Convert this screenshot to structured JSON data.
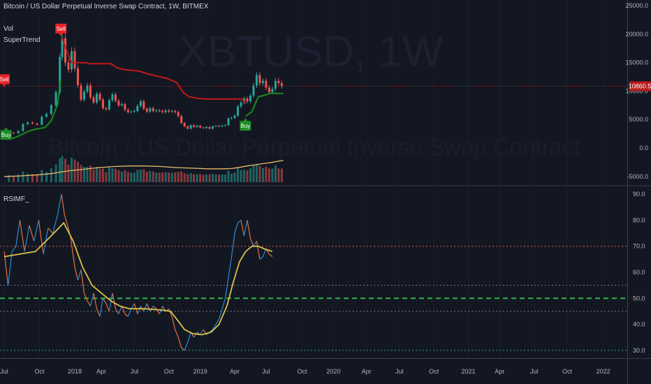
{
  "header": {
    "symbol_title": "Bitcoin / US Dollar Perpetual Inverse Swap Contract, 1W, BITMEX",
    "indicators": [
      "Vol",
      "SuperTrend"
    ]
  },
  "watermark": {
    "ticker": "XBTUSD, 1W",
    "description": "Bitcoin / US Dollar Perpetual Inverse Swap Contract"
  },
  "price_tag": {
    "label": "10860.5",
    "value": 10860.5,
    "color": "#b71c1c"
  },
  "signals": [
    {
      "label": "Sell",
      "type": "sell",
      "t": 0.0,
      "price": 10500
    },
    {
      "label": "Buy",
      "type": "buy",
      "t": 0.12,
      "price": 3900
    },
    {
      "label": "Sell",
      "type": "sell",
      "t": 3.62,
      "price": 19400
    },
    {
      "label": "Buy",
      "type": "buy",
      "t": 15.38,
      "price": 5500
    }
  ],
  "colors": {
    "up": "#26a69a",
    "down": "#ef5350",
    "supertrend_up": "#1b8a1b",
    "supertrend_down": "#c21818",
    "rsi": "#2a8bd1",
    "rsi_alt": "#e8703a",
    "signal": "#d8c24a",
    "volume_ma": "#e8b96c"
  },
  "chart_data": [
    {
      "type": "candlestick",
      "title": "Bitcoin / US Dollar Perpetual Inverse Swap Contract, 1W, BITMEX",
      "yticks": [
        "25000.0",
        "20000.0",
        "15000.0",
        "10000.0",
        "5000.0",
        "0.0",
        "-5000.0"
      ],
      "ytick_values": [
        25000,
        20000,
        15000,
        10000,
        5000,
        0,
        -5000
      ],
      "ylim": [
        -6500,
        26000
      ],
      "xlim": [
        0,
        40
      ],
      "xticks": [
        "Jul",
        "Oct",
        "2018",
        "Apr",
        "Jul",
        "Oct",
        "2019",
        "Apr",
        "Jul",
        "Oct",
        "2020",
        "Apr",
        "Jul",
        "Oct",
        "2021",
        "Apr",
        "Jul",
        "Oct",
        "2022"
      ],
      "xtick_positions": [
        0,
        2.25,
        4.5,
        6.2,
        8.3,
        10.5,
        12.5,
        14.7,
        16.7,
        19.0,
        21.0,
        23.1,
        25.2,
        27.4,
        29.6,
        31.6,
        33.8,
        35.9,
        38.2
      ],
      "close_path": [
        [
          0,
          2500
        ],
        [
          0.3,
          2700
        ],
        [
          0.6,
          2600
        ],
        [
          0.9,
          3000
        ],
        [
          1.2,
          4200
        ],
        [
          1.5,
          4500
        ],
        [
          1.8,
          4300
        ],
        [
          2.1,
          4100
        ],
        [
          2.4,
          5500
        ],
        [
          2.7,
          6000
        ],
        [
          3.0,
          7500
        ],
        [
          3.3,
          9800
        ],
        [
          3.55,
          16000
        ],
        [
          3.7,
          19300
        ],
        [
          3.9,
          15000
        ],
        [
          4.1,
          13800
        ],
        [
          4.3,
          17000
        ],
        [
          4.5,
          14000
        ],
        [
          4.7,
          11000
        ],
        [
          4.9,
          8500
        ],
        [
          5.1,
          9900
        ],
        [
          5.3,
          11000
        ],
        [
          5.5,
          8900
        ],
        [
          5.7,
          8000
        ],
        [
          5.9,
          9500
        ],
        [
          6.1,
          8500
        ],
        [
          6.3,
          7000
        ],
        [
          6.5,
          6800
        ],
        [
          6.7,
          8400
        ],
        [
          6.9,
          9400
        ],
        [
          7.1,
          8300
        ],
        [
          7.3,
          7500
        ],
        [
          7.5,
          7700
        ],
        [
          7.7,
          6700
        ],
        [
          7.9,
          6300
        ],
        [
          8.1,
          6400
        ],
        [
          8.3,
          6500
        ],
        [
          8.5,
          7400
        ],
        [
          8.7,
          8200
        ],
        [
          8.9,
          6900
        ],
        [
          9.1,
          6400
        ],
        [
          9.3,
          7000
        ],
        [
          9.5,
          6500
        ],
        [
          9.7,
          6600
        ],
        [
          9.9,
          6500
        ],
        [
          10.1,
          6300
        ],
        [
          10.3,
          6600
        ],
        [
          10.5,
          6400
        ],
        [
          10.7,
          6500
        ],
        [
          10.9,
          6300
        ],
        [
          11.1,
          5600
        ],
        [
          11.3,
          4400
        ],
        [
          11.5,
          3800
        ],
        [
          11.7,
          3400
        ],
        [
          11.9,
          4000
        ],
        [
          12.1,
          3700
        ],
        [
          12.3,
          3900
        ],
        [
          12.5,
          3600
        ],
        [
          12.7,
          3500
        ],
        [
          12.9,
          3700
        ],
        [
          13.1,
          3400
        ],
        [
          13.3,
          3800
        ],
        [
          13.5,
          3900
        ],
        [
          13.7,
          3800
        ],
        [
          13.9,
          3950
        ],
        [
          14.1,
          4000
        ],
        [
          14.3,
          5200
        ],
        [
          14.5,
          5300
        ],
        [
          14.7,
          5700
        ],
        [
          14.9,
          7300
        ],
        [
          15.1,
          8000
        ],
        [
          15.3,
          8700
        ],
        [
          15.5,
          8200
        ],
        [
          15.7,
          9200
        ],
        [
          15.9,
          11000
        ],
        [
          16.1,
          12800
        ],
        [
          16.3,
          11400
        ],
        [
          16.5,
          11800
        ],
        [
          16.7,
          10600
        ],
        [
          16.9,
          9800
        ],
        [
          17.1,
          10400
        ],
        [
          17.3,
          11800
        ],
        [
          17.5,
          11400
        ],
        [
          17.7,
          10860
        ]
      ],
      "supertrend": [
        {
          "trend": "up",
          "points": [
            [
              0.1,
              1700
            ],
            [
              0.6,
              1750
            ],
            [
              1.0,
              2200
            ],
            [
              1.6,
              3000
            ],
            [
              2.0,
              3300
            ],
            [
              2.6,
              3600
            ],
            [
              3.0,
              4800
            ],
            [
              3.4,
              7600
            ],
            [
              3.6,
              12000
            ]
          ]
        },
        {
          "trend": "down",
          "points": [
            [
              3.7,
              19300
            ],
            [
              4.0,
              17000
            ],
            [
              4.3,
              15000
            ],
            [
              5.2,
              15000
            ],
            [
              5.5,
              14800
            ],
            [
              6.8,
              14800
            ],
            [
              7.2,
              14100
            ],
            [
              7.6,
              13800
            ],
            [
              8.6,
              13500
            ],
            [
              9.2,
              13000
            ],
            [
              10.4,
              12200
            ],
            [
              11.0,
              11500
            ],
            [
              11.4,
              9800
            ],
            [
              11.8,
              9000
            ],
            [
              12.4,
              8700
            ],
            [
              13.0,
              8600
            ],
            [
              15.2,
              8600
            ],
            [
              15.4,
              7800
            ]
          ]
        },
        {
          "trend": "up",
          "points": [
            [
              15.4,
              5600
            ],
            [
              15.8,
              6400
            ],
            [
              16.2,
              9000
            ],
            [
              16.5,
              9200
            ],
            [
              17.0,
              9600
            ],
            [
              17.5,
              9600
            ],
            [
              17.8,
              9600
            ]
          ]
        }
      ],
      "volume_ma": [
        [
          0,
          -5000
        ],
        [
          1,
          -4900
        ],
        [
          2,
          -4750
        ],
        [
          3,
          -4500
        ],
        [
          4,
          -4050
        ],
        [
          5,
          -3750
        ],
        [
          6,
          -3450
        ],
        [
          7,
          -3250
        ],
        [
          8,
          -3150
        ],
        [
          9,
          -3150
        ],
        [
          10,
          -3250
        ],
        [
          11,
          -3450
        ],
        [
          12,
          -3550
        ],
        [
          13,
          -3650
        ],
        [
          14,
          -3650
        ],
        [
          14.5,
          -3600
        ],
        [
          15,
          -3400
        ],
        [
          15.5,
          -3150
        ],
        [
          16,
          -2950
        ],
        [
          16.5,
          -2750
        ],
        [
          17,
          -2550
        ],
        [
          17.5,
          -2300
        ],
        [
          17.8,
          -2200
        ]
      ],
      "volume_base": -6000
    },
    {
      "type": "line",
      "title": "RSIMF_",
      "yticks": [
        "90.0",
        "80.0",
        "70.0",
        "60.0",
        "50.0",
        "40.0",
        "30.0"
      ],
      "ytick_values": [
        90,
        80,
        70,
        60,
        50,
        40,
        30
      ],
      "ylim": [
        27,
        93
      ],
      "xlim": [
        0,
        40
      ],
      "hlines": [
        {
          "y": 70,
          "color": "#ef5350",
          "style": "dotted"
        },
        {
          "y": 55,
          "color": "#787b86",
          "style": "dotted"
        },
        {
          "y": 50,
          "color": "#2fb54a",
          "style": "dashed"
        },
        {
          "y": 45,
          "color": "#787b86",
          "style": "dotted"
        },
        {
          "y": 30,
          "color": "#26a69a",
          "style": "dotted"
        }
      ],
      "series": [
        {
          "points": [
            [
              0,
              68
            ],
            [
              0.25,
              55
            ],
            [
              0.5,
              68
            ],
            [
              0.75,
              70
            ],
            [
              1.0,
              80
            ],
            [
              1.3,
              68
            ],
            [
              1.6,
              78
            ],
            [
              1.9,
              72
            ],
            [
              2.2,
              80
            ],
            [
              2.5,
              67
            ],
            [
              2.8,
              77
            ],
            [
              3.1,
              75
            ],
            [
              3.4,
              82
            ],
            [
              3.65,
              90
            ],
            [
              3.85,
              82
            ],
            [
              4.05,
              78
            ],
            [
              4.25,
              73
            ],
            [
              4.5,
              62
            ],
            [
              4.7,
              57
            ],
            [
              4.9,
              61
            ],
            [
              5.1,
              52
            ],
            [
              5.3,
              49
            ],
            [
              5.5,
              47
            ],
            [
              5.7,
              52
            ],
            [
              5.9,
              46
            ],
            [
              6.1,
              43
            ],
            [
              6.3,
              50
            ],
            [
              6.5,
              48
            ],
            [
              6.7,
              45
            ],
            [
              6.9,
              52
            ],
            [
              7.1,
              46
            ],
            [
              7.3,
              44
            ],
            [
              7.5,
              47
            ],
            [
              7.7,
              44
            ],
            [
              7.9,
              43
            ],
            [
              8.1,
              46
            ],
            [
              8.3,
              48
            ],
            [
              8.5,
              44
            ],
            [
              8.7,
              47
            ],
            [
              8.9,
              45
            ],
            [
              9.1,
              48
            ],
            [
              9.3,
              45
            ],
            [
              9.5,
              47
            ],
            [
              9.7,
              46
            ],
            [
              9.9,
              44
            ],
            [
              10.1,
              47
            ],
            [
              10.3,
              45
            ],
            [
              10.5,
              46
            ],
            [
              10.7,
              43
            ],
            [
              10.9,
              38
            ],
            [
              11.1,
              35
            ],
            [
              11.3,
              31
            ],
            [
              11.5,
              30
            ],
            [
              11.7,
              33
            ],
            [
              11.9,
              37
            ],
            [
              12.1,
              35
            ],
            [
              12.3,
              37
            ],
            [
              12.5,
              36
            ],
            [
              12.7,
              38
            ],
            [
              12.9,
              36
            ],
            [
              13.1,
              37
            ],
            [
              13.3,
              38
            ],
            [
              13.5,
              40
            ],
            [
              13.7,
              42
            ],
            [
              13.9,
              46
            ],
            [
              14.1,
              50
            ],
            [
              14.3,
              58
            ],
            [
              14.5,
              66
            ],
            [
              14.7,
              75
            ],
            [
              14.9,
              79
            ],
            [
              15.1,
              80
            ],
            [
              15.3,
              74
            ],
            [
              15.5,
              80
            ],
            [
              15.7,
              73
            ],
            [
              15.9,
              70
            ],
            [
              16.1,
              72
            ],
            [
              16.3,
              65
            ],
            [
              16.5,
              66
            ],
            [
              16.7,
              69
            ],
            [
              16.9,
              67
            ],
            [
              17.1,
              66
            ]
          ]
        },
        {
          "name": "",
          "points": [
            [
              0,
              66
            ],
            [
              1,
              67
            ],
            [
              2,
              68
            ],
            [
              3,
              74
            ],
            [
              3.8,
              79
            ],
            [
              4.4,
              72
            ],
            [
              5.0,
              62
            ],
            [
              5.6,
              55
            ],
            [
              6.2,
              52
            ],
            [
              6.8,
              49
            ],
            [
              7.4,
              47
            ],
            [
              8.0,
              46
            ],
            [
              9.0,
              46
            ],
            [
              10.0,
              45.5
            ],
            [
              10.6,
              45
            ],
            [
              11.0,
              42
            ],
            [
              11.5,
              38
            ],
            [
              12.0,
              36.5
            ],
            [
              12.6,
              36
            ],
            [
              13.2,
              37
            ],
            [
              13.7,
              40
            ],
            [
              14.2,
              47
            ],
            [
              14.6,
              56
            ],
            [
              15.0,
              64
            ],
            [
              15.4,
              68
            ],
            [
              15.8,
              70
            ],
            [
              16.2,
              70
            ],
            [
              16.6,
              69
            ],
            [
              17.1,
              68
            ]
          ]
        }
      ]
    }
  ]
}
